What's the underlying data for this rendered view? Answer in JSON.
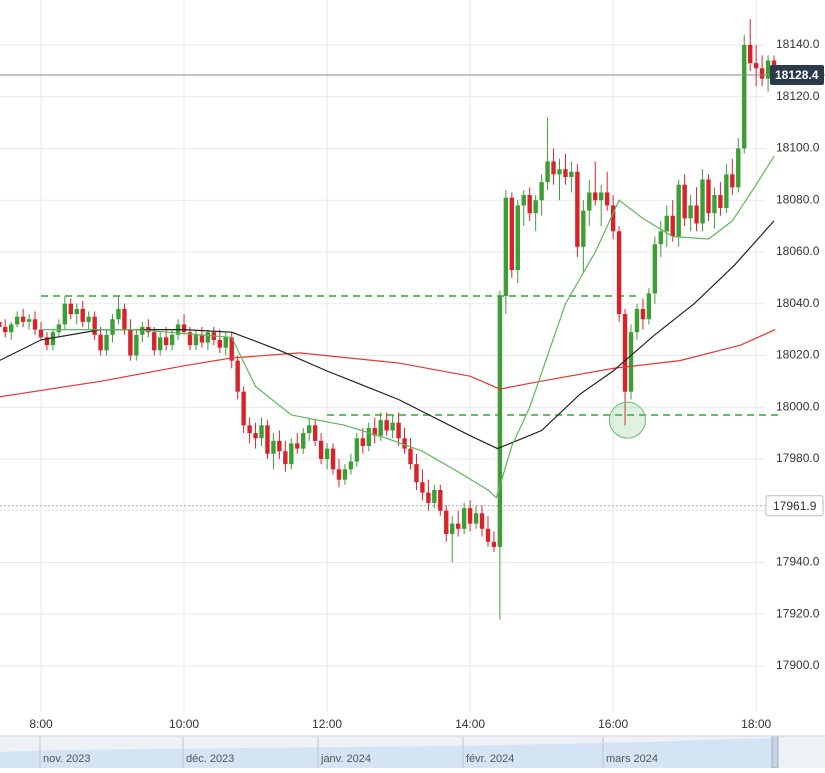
{
  "chart_data": {
    "type": "candlestick",
    "up_color": "#3d9e35",
    "down_color": "#d8232a",
    "grid": true,
    "xlim": [
      445.6,
      1100
    ],
    "ylim": [
      17873.3,
      18157.4
    ],
    "yticks": [
      {
        "value": 17900,
        "label": "17900.0"
      },
      {
        "value": 17920,
        "label": "17920.0"
      },
      {
        "value": 17940,
        "label": "17940.0"
      },
      {
        "value": 17960,
        "label": "17960.0"
      },
      {
        "value": 17980,
        "label": "17980.0"
      },
      {
        "value": 18000,
        "label": "18000.0"
      },
      {
        "value": 18020,
        "label": "18020.0"
      },
      {
        "value": 18040,
        "label": "18040.0"
      },
      {
        "value": 18060,
        "label": "18060.0"
      },
      {
        "value": 18080,
        "label": "18080.0"
      },
      {
        "value": 18100,
        "label": "18100.0"
      },
      {
        "value": 18120,
        "label": "18120.0"
      },
      {
        "value": 18140,
        "label": "18140.0"
      }
    ],
    "xticks": [
      {
        "value": 480,
        "label": "8:00"
      },
      {
        "value": 600,
        "label": "10:00"
      },
      {
        "value": 720,
        "label": "12:00"
      },
      {
        "value": 840,
        "label": "14:00"
      },
      {
        "value": 960,
        "label": "16:00"
      },
      {
        "value": 1080,
        "label": "18:00"
      }
    ],
    "x": [
      445,
      450,
      455,
      460,
      465,
      470,
      475,
      480,
      485,
      490,
      495,
      500,
      505,
      510,
      515,
      520,
      525,
      530,
      535,
      540,
      545,
      550,
      555,
      560,
      565,
      570,
      575,
      580,
      585,
      590,
      595,
      600,
      605,
      610,
      615,
      620,
      625,
      630,
      635,
      640,
      645,
      650,
      655,
      660,
      665,
      670,
      675,
      680,
      685,
      690,
      695,
      700,
      705,
      710,
      715,
      720,
      725,
      730,
      735,
      740,
      745,
      750,
      755,
      760,
      765,
      770,
      775,
      780,
      785,
      790,
      795,
      800,
      805,
      810,
      815,
      820,
      825,
      830,
      835,
      840,
      845,
      850,
      855,
      860,
      865,
      870,
      875,
      880,
      885,
      890,
      895,
      900,
      905,
      910,
      915,
      920,
      925,
      930,
      935,
      940,
      945,
      950,
      955,
      960,
      965,
      970,
      975,
      980,
      985,
      990,
      995,
      1000,
      1005,
      1010,
      1015,
      1020,
      1025,
      1030,
      1035,
      1040,
      1045,
      1050,
      1055,
      1060,
      1065,
      1070,
      1075,
      1080,
      1085,
      1090,
      1095
    ],
    "ohlc": [
      [
        18033,
        18036,
        18030,
        18031
      ],
      [
        18031,
        18034,
        18027,
        18029
      ],
      [
        18029,
        18033,
        18026,
        18032
      ],
      [
        18032,
        18037,
        18031,
        18035
      ],
      [
        18035,
        18038,
        18031,
        18033
      ],
      [
        18033,
        18036,
        18030,
        18034
      ],
      [
        18034,
        18037,
        18028,
        18030
      ],
      [
        18030,
        18033,
        18026,
        18027
      ],
      [
        18027,
        18029,
        18022,
        18024
      ],
      [
        18024,
        18030,
        18022,
        18029
      ],
      [
        18029,
        18034,
        18027,
        18032
      ],
      [
        18032,
        18043,
        18030,
        18040
      ],
      [
        18040,
        18042,
        18034,
        18036
      ],
      [
        18036,
        18040,
        18032,
        18038
      ],
      [
        18038,
        18041,
        18031,
        18033
      ],
      [
        18033,
        18037,
        18030,
        18035
      ],
      [
        18035,
        18037,
        18026,
        18028
      ],
      [
        18028,
        18031,
        18020,
        18022
      ],
      [
        18022,
        18030,
        18020,
        18028
      ],
      [
        18028,
        18036,
        18025,
        18034
      ],
      [
        18034,
        18043,
        18032,
        18038
      ],
      [
        18038,
        18040,
        18028,
        18030
      ],
      [
        18030,
        18034,
        18018,
        18020
      ],
      [
        18020,
        18030,
        18018,
        18028
      ],
      [
        18028,
        18033,
        18025,
        18031
      ],
      [
        18031,
        18034,
        18027,
        18029
      ],
      [
        18029,
        18031,
        18020,
        18022
      ],
      [
        18022,
        18029,
        18020,
        18027
      ],
      [
        18027,
        18031,
        18022,
        18024
      ],
      [
        18024,
        18030,
        18022,
        18028
      ],
      [
        18028,
        18034,
        18026,
        18032
      ],
      [
        18032,
        18036,
        18028,
        18029
      ],
      [
        18029,
        18031,
        18022,
        18024
      ],
      [
        18024,
        18030,
        18022,
        18028
      ],
      [
        18028,
        18031,
        18023,
        18025
      ],
      [
        18025,
        18030,
        18022,
        18029
      ],
      [
        18029,
        18031,
        18024,
        18026
      ],
      [
        18026,
        18030,
        18021,
        18023
      ],
      [
        18023,
        18029,
        18020,
        18027
      ],
      [
        18027,
        18029,
        18015,
        18018
      ],
      [
        18018,
        18020,
        18003,
        18006
      ],
      [
        18006,
        18008,
        17990,
        17993
      ],
      [
        17993,
        17996,
        17986,
        17990
      ],
      [
        17990,
        17994,
        17984,
        17988
      ],
      [
        17988,
        17996,
        17985,
        17993
      ],
      [
        17993,
        17995,
        17980,
        17982
      ],
      [
        17982,
        17990,
        17976,
        17987
      ],
      [
        17987,
        17991,
        17980,
        17983
      ],
      [
        17983,
        17987,
        17975,
        17978
      ],
      [
        17978,
        17988,
        17976,
        17986
      ],
      [
        17986,
        17990,
        17982,
        17984
      ],
      [
        17984,
        17992,
        17982,
        17990
      ],
      [
        17990,
        17996,
        17987,
        17993
      ],
      [
        17993,
        17995,
        17985,
        17987
      ],
      [
        17987,
        17990,
        17978,
        17980
      ],
      [
        17980,
        17986,
        17976,
        17984
      ],
      [
        17984,
        17986,
        17974,
        17976
      ],
      [
        17976,
        17980,
        17969,
        17972
      ],
      [
        17972,
        17978,
        17970,
        17976
      ],
      [
        17976,
        17982,
        17974,
        17979
      ],
      [
        17979,
        17990,
        17977,
        17988
      ],
      [
        17988,
        17992,
        17982,
        17985
      ],
      [
        17985,
        17994,
        17983,
        17992
      ],
      [
        17992,
        17996,
        17986,
        17989
      ],
      [
        17989,
        17998,
        17987,
        17995
      ],
      [
        17995,
        17998,
        17989,
        17991
      ],
      [
        17991,
        17997,
        17988,
        17994
      ],
      [
        17994,
        17998,
        17985,
        17988
      ],
      [
        17988,
        17992,
        17982,
        17984
      ],
      [
        17984,
        17988,
        17976,
        17978
      ],
      [
        17978,
        17982,
        17968,
        17971
      ],
      [
        17971,
        17976,
        17964,
        17967
      ],
      [
        17967,
        17972,
        17960,
        17963
      ],
      [
        17963,
        17970,
        17961,
        17968
      ],
      [
        17968,
        17970,
        17958,
        17960
      ],
      [
        17960,
        17962,
        17948,
        17951
      ],
      [
        17951,
        17958,
        17940,
        17955
      ],
      [
        17955,
        17960,
        17950,
        17953
      ],
      [
        17953,
        17963,
        17951,
        17961
      ],
      [
        17961,
        17964,
        17952,
        17955
      ],
      [
        17955,
        17962,
        17953,
        17959
      ],
      [
        17959,
        17962,
        17950,
        17953
      ],
      [
        17953,
        17958,
        17946,
        17948
      ],
      [
        17948,
        17952,
        17944,
        17946
      ],
      [
        17946,
        18045,
        17918,
        18043
      ],
      [
        18043,
        18084,
        18036,
        18081
      ],
      [
        18081,
        18083,
        18050,
        18053
      ],
      [
        18053,
        18080,
        18048,
        18078
      ],
      [
        18078,
        18084,
        18070,
        18082
      ],
      [
        18082,
        18085,
        18072,
        18075
      ],
      [
        18075,
        18082,
        18068,
        18080
      ],
      [
        18080,
        18090,
        18074,
        18087
      ],
      [
        18087,
        18112,
        18084,
        18095
      ],
      [
        18095,
        18100,
        18086,
        18090
      ],
      [
        18090,
        18096,
        18080,
        18092
      ],
      [
        18092,
        18098,
        18086,
        18089
      ],
      [
        18089,
        18095,
        18083,
        18091
      ],
      [
        18091,
        18094,
        18058,
        18062
      ],
      [
        18062,
        18080,
        18052,
        18076
      ],
      [
        18076,
        18088,
        18070,
        18083
      ],
      [
        18083,
        18095,
        18078,
        18080
      ],
      [
        18080,
        18086,
        18070,
        18083
      ],
      [
        18083,
        18091,
        18076,
        18078
      ],
      [
        18078,
        18082,
        18065,
        18068
      ],
      [
        18068,
        18070,
        18033,
        18036
      ],
      [
        18036,
        18038,
        17993,
        18006
      ],
      [
        18006,
        18032,
        18003,
        18029
      ],
      [
        18029,
        18040,
        18026,
        18038
      ],
      [
        18038,
        18042,
        18030,
        18034
      ],
      [
        18034,
        18046,
        18032,
        18044
      ],
      [
        18044,
        18066,
        18040,
        18063
      ],
      [
        18063,
        18072,
        18058,
        18068
      ],
      [
        18068,
        18078,
        18062,
        18074
      ],
      [
        18074,
        18080,
        18064,
        18066
      ],
      [
        18066,
        18088,
        18062,
        18086
      ],
      [
        18086,
        18090,
        18070,
        18073
      ],
      [
        18073,
        18082,
        18068,
        18078
      ],
      [
        18078,
        18085,
        18068,
        18071
      ],
      [
        18071,
        18092,
        18068,
        18088
      ],
      [
        18088,
        18090,
        18072,
        18075
      ],
      [
        18075,
        18085,
        18069,
        18082
      ],
      [
        18082,
        18087,
        18074,
        18077
      ],
      [
        18077,
        18094,
        18075,
        18090
      ],
      [
        18090,
        18096,
        18082,
        18085
      ],
      [
        18085,
        18104,
        18083,
        18100
      ],
      [
        18100,
        18144,
        18098,
        18140
      ],
      [
        18140,
        18150,
        18130,
        18133
      ],
      [
        18133,
        18140,
        18124,
        18131
      ],
      [
        18131,
        18136,
        18124,
        18127
      ],
      [
        18127,
        18136,
        18122,
        18134
      ],
      [
        18134,
        18136,
        18126,
        18128.4
      ]
    ],
    "averages": [
      {
        "color": "#e53935",
        "x": [
          445,
          530,
          600,
          639,
          697,
          781,
          840,
          865,
          899,
          960,
          1016,
          1067,
          1096
        ],
        "values": [
          18004,
          18010,
          18016,
          18019,
          18021,
          18017,
          18012,
          18007,
          18010,
          18015,
          18018,
          18024,
          18030
        ]
      },
      {
        "color": "#222222",
        "x": [
          445,
          480,
          530,
          600,
          640,
          680,
          720,
          780,
          840,
          863,
          900,
          932,
          960,
          995,
          1028,
          1062,
          1095
        ],
        "values": [
          18018,
          18026,
          18030,
          18030,
          18029,
          18022,
          18014,
          18003,
          17989,
          17984,
          17991,
          18005,
          18014,
          18028,
          18040,
          18055,
          18072
        ]
      },
      {
        "color": "#5cb85c",
        "x": [
          480,
          560,
          640,
          660,
          690,
          735,
          770,
          800,
          830,
          855,
          862,
          875,
          890,
          920,
          945,
          965,
          985,
          1010,
          1040,
          1060,
          1080,
          1095
        ],
        "values": [
          18030,
          18030,
          18027,
          18008,
          17997,
          17993,
          17988,
          17983,
          17975,
          17968,
          17965,
          17985,
          18000,
          18040,
          18060,
          18080,
          18073,
          18066,
          18065,
          18072,
          18086,
          18097
        ]
      }
    ],
    "levels": [
      {
        "value": 18043,
        "from": 480,
        "to": 983
      },
      {
        "value": 17997,
        "from": 720,
        "to": 1100
      }
    ],
    "highlight": {
      "x": 972,
      "y": 17995
    },
    "last_price": 18128.4,
    "marker_price": 17961.9,
    "navigator": {
      "labels": [
        "nov. 2023",
        "déc. 2023",
        "janv. 2024",
        "févr. 2024",
        "mars 2024"
      ]
    }
  }
}
